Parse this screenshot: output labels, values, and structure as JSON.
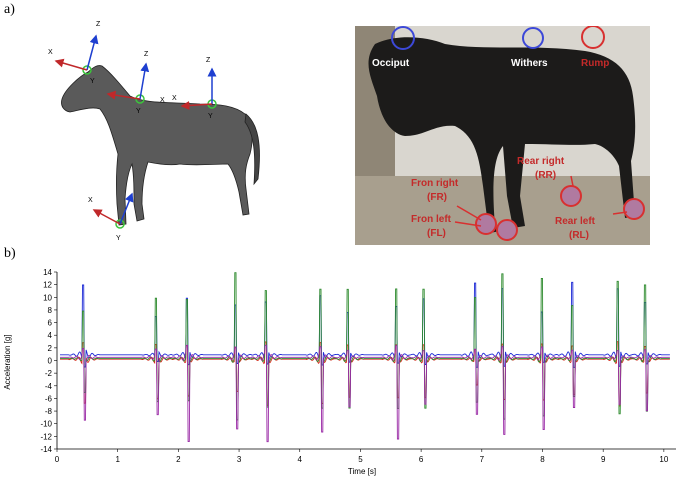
{
  "panels": {
    "a": "a)",
    "b": "b)"
  },
  "drawing_axes": {
    "occiput": {
      "x": "X",
      "y": "Y",
      "z": "Z"
    },
    "withers": {
      "x": "X",
      "y": "Y",
      "z": "Z"
    },
    "rump": {
      "x": "X",
      "y": "Y",
      "z": "Z"
    },
    "hoof": {
      "x": "X",
      "y": "Y"
    }
  },
  "photo_labels": {
    "occiput": "Occiput",
    "withers": "Withers",
    "rump": "Rump",
    "front_right_1": "Fron right",
    "front_right_2": "(FR)",
    "front_left_1": "Fron left",
    "front_left_2": "(FL)",
    "rear_right_1": "Rear right",
    "rear_right_2": "(RR)",
    "rear_left_1": "Rear left",
    "rear_left_2": "(RL)"
  },
  "colors": {
    "x_axis": "#c0282a",
    "z_axis": "#1e3fd0",
    "sensor": "#3cc43c",
    "photo_text": "#c42a2a",
    "series_blue": "#1e2bd6",
    "series_red": "#d42a1a",
    "series_green": "#2e8b2e",
    "series_purple": "#9a2aa6"
  },
  "chart_data": {
    "type": "line",
    "xlabel": "Time [s]",
    "ylabel": "Acceleration [g]",
    "xlim": [
      0,
      10.2
    ],
    "ylim": [
      -14,
      14
    ],
    "x_ticks": [
      "0",
      "1",
      "2",
      "3",
      "4",
      "5",
      "6",
      "7",
      "8",
      "9",
      "10"
    ],
    "y_ticks": [
      "14",
      "12",
      "10",
      "8",
      "6",
      "4",
      "2",
      "0",
      "-2",
      "-4",
      "-6",
      "-8",
      "-10",
      "-12",
      "-14"
    ],
    "grid": false,
    "cycle_times_s": [
      0.45,
      1.65,
      2.15,
      2.95,
      3.45,
      4.35,
      4.8,
      5.6,
      6.05,
      6.9,
      7.35,
      8.0,
      8.5,
      9.25,
      9.7
    ],
    "series": [
      {
        "color": "blue",
        "baseline": 0.9,
        "peak_max": 11.5,
        "peak_min": -2
      },
      {
        "color": "red",
        "baseline": 0.2,
        "peak_max": 3,
        "peak_min": -8
      },
      {
        "color": "green",
        "baseline": 0.3,
        "peak_max": 14,
        "peak_min": -10
      },
      {
        "color": "purple",
        "baseline": 0.5,
        "peak_max": 2,
        "peak_min": -14
      }
    ]
  }
}
